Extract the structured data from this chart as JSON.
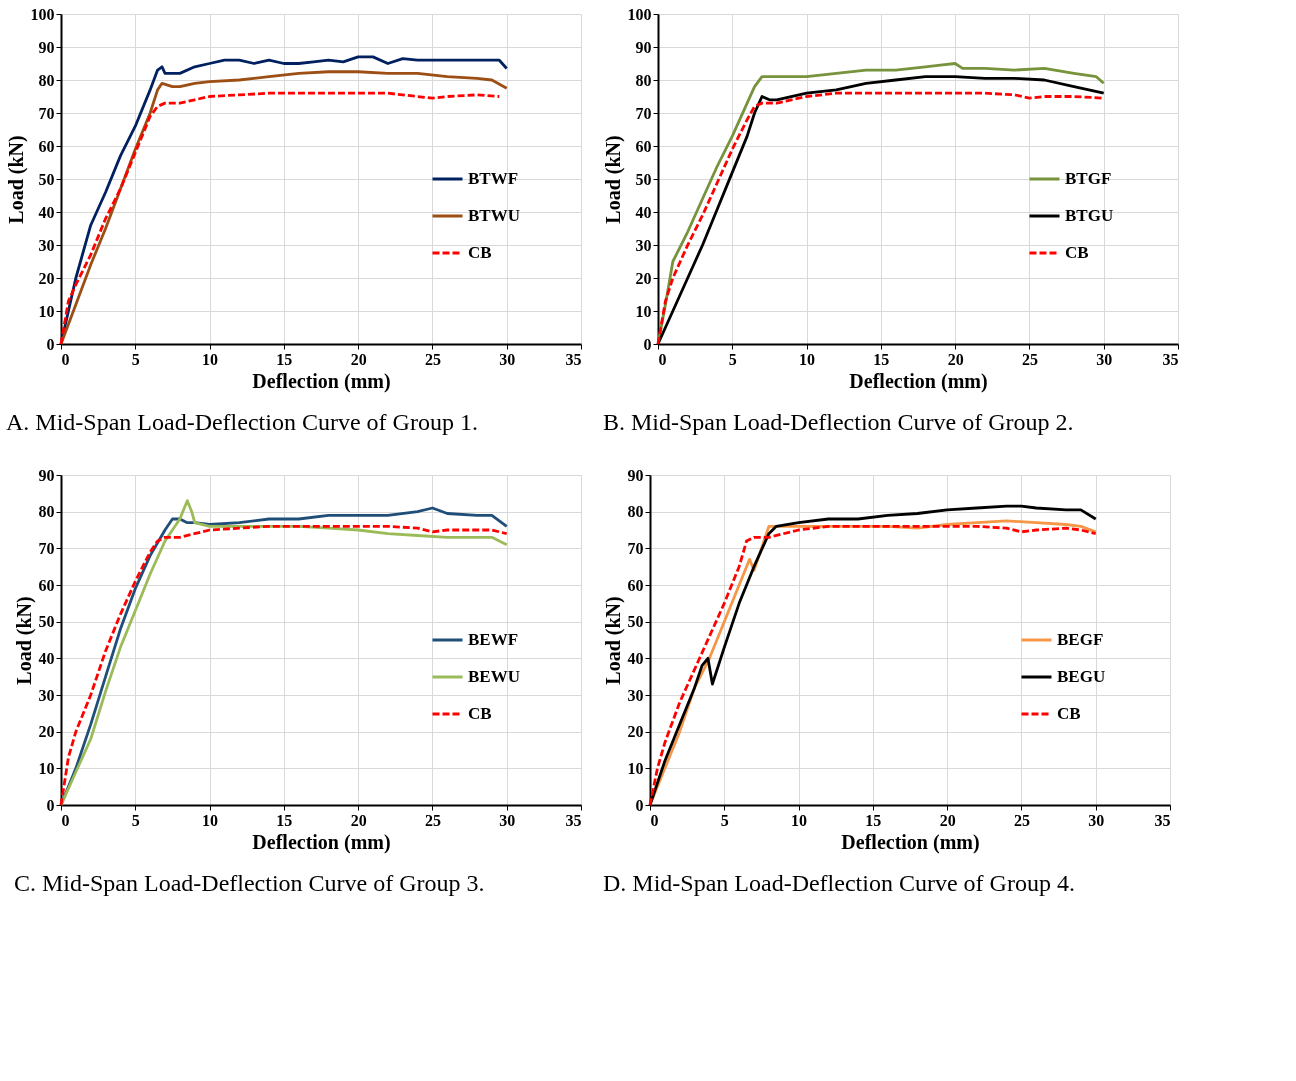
{
  "chart_data": [
    {
      "type": "line",
      "title": "A.  Mid-Span Load-Deflection Curve of Group 1.",
      "xlabel": "Deflection (mm)",
      "ylabel": "Load (kN)",
      "xlim": [
        0,
        35
      ],
      "xticks": [
        0,
        5,
        10,
        15,
        20,
        25,
        30,
        35
      ],
      "ylim": [
        0,
        100
      ],
      "yticks": [
        0,
        10,
        20,
        30,
        40,
        50,
        60,
        70,
        80,
        90,
        100
      ],
      "grid": true,
      "legend": "right",
      "series": [
        {
          "name": "BTWF",
          "color": "#002060",
          "line_style": "solid",
          "x": [
            0,
            0.5,
            1,
            2,
            3,
            4,
            5,
            6,
            6.5,
            6.8,
            7,
            8,
            9,
            10,
            11,
            12,
            13,
            14,
            15,
            16,
            17,
            18,
            19,
            20,
            21,
            22,
            23,
            24,
            25,
            26,
            27,
            28,
            29,
            29.5,
            30
          ],
          "values": [
            0,
            10,
            20,
            36,
            46,
            57,
            66,
            77,
            83,
            84,
            82,
            82,
            84,
            85,
            86,
            86,
            85,
            86,
            85,
            85,
            85.5,
            86,
            85.5,
            87,
            87,
            85,
            86.5,
            86,
            86,
            86,
            86,
            86,
            86,
            86,
            83.5
          ]
        },
        {
          "name": "BTWU",
          "color": "#9c4e14",
          "line_style": "solid",
          "x": [
            0,
            1,
            2,
            3,
            4,
            5,
            6,
            6.5,
            6.8,
            7.5,
            8,
            9,
            10,
            12,
            14,
            16,
            18,
            20,
            22,
            24,
            26,
            28,
            29,
            30
          ],
          "values": [
            0,
            12,
            24,
            35,
            47,
            59,
            70,
            77,
            79,
            78,
            78,
            79,
            79.5,
            80,
            81,
            82,
            82.5,
            82.5,
            82,
            82,
            81,
            80.5,
            80,
            77.5
          ]
        },
        {
          "name": "CB",
          "color": "#ff0000",
          "line_style": "dashed",
          "x": [
            0,
            0.5,
            1,
            2,
            3,
            4,
            5,
            6,
            6.5,
            7,
            8,
            9,
            10,
            12,
            14,
            16,
            18,
            20,
            22,
            24,
            25,
            26,
            28,
            29.5
          ],
          "values": [
            0,
            13,
            18,
            27,
            38,
            47,
            58,
            69,
            72,
            73,
            73,
            74,
            75,
            75.5,
            76,
            76,
            76,
            76,
            76,
            75,
            74.5,
            75,
            75.5,
            75
          ]
        }
      ]
    },
    {
      "type": "line",
      "title": "B.  Mid-Span Load-Deflection Curve of Group 2.",
      "xlabel": "Deflection (mm)",
      "ylabel": "Load (kN)",
      "xlim": [
        0,
        35
      ],
      "xticks": [
        0,
        5,
        10,
        15,
        20,
        25,
        30,
        35
      ],
      "ylim": [
        0,
        100
      ],
      "yticks": [
        0,
        10,
        20,
        30,
        40,
        50,
        60,
        70,
        80,
        90,
        100
      ],
      "grid": true,
      "legend": "right",
      "series": [
        {
          "name": "BTGF",
          "color": "#77933c",
          "line_style": "solid",
          "x": [
            0,
            0.5,
            1,
            2,
            3,
            4,
            5,
            6,
            6.5,
            7,
            8,
            10,
            12,
            14,
            16,
            18,
            19,
            20,
            20.5,
            22,
            24,
            26,
            28,
            29.5,
            30
          ],
          "values": [
            0,
            12,
            25,
            34,
            44,
            54,
            63,
            73,
            78,
            81,
            81,
            81,
            82,
            83,
            83,
            84,
            84.5,
            85,
            83.5,
            83.5,
            83,
            83.5,
            82,
            81,
            79
          ]
        },
        {
          "name": "BTGU",
          "color": "#000000",
          "line_style": "solid",
          "x": [
            0,
            1,
            2,
            3,
            4,
            5,
            6,
            6.5,
            7,
            7.5,
            8,
            10,
            12,
            14,
            16,
            18,
            20,
            22,
            24,
            26,
            28,
            29,
            30
          ],
          "values": [
            0,
            10,
            20,
            30,
            41,
            52,
            63,
            70,
            75,
            74,
            74,
            76,
            77,
            79,
            80,
            81,
            81,
            80.5,
            80.5,
            80,
            78,
            77,
            76
          ]
        },
        {
          "name": "CB",
          "color": "#ff0000",
          "line_style": "dashed",
          "x": [
            0,
            0.5,
            1,
            2,
            3,
            4,
            5,
            6,
            6.5,
            7,
            8,
            10,
            12,
            14,
            16,
            18,
            20,
            22,
            24,
            25,
            26,
            28,
            30
          ],
          "values": [
            0,
            13,
            20,
            30,
            39,
            49,
            59,
            68,
            72,
            73,
            73,
            75,
            76,
            76,
            76,
            76,
            76,
            76,
            75.5,
            74.5,
            75,
            75,
            74.5
          ]
        }
      ]
    },
    {
      "type": "line",
      "title": "C.  Mid-Span Load-Deflection Curve of Group 3.",
      "xlabel": "Deflection (mm)",
      "ylabel": "Load (kN)",
      "xlim": [
        0,
        35
      ],
      "xticks": [
        0,
        5,
        10,
        15,
        20,
        25,
        30,
        35
      ],
      "ylim": [
        0,
        90
      ],
      "yticks": [
        0,
        10,
        20,
        30,
        40,
        50,
        60,
        70,
        80,
        90
      ],
      "grid": true,
      "legend": "right",
      "series": [
        {
          "name": "BEWF",
          "color": "#1f4e79",
          "line_style": "solid",
          "x": [
            0,
            1,
            2,
            3,
            4,
            5,
            6,
            7,
            7.5,
            8,
            8.5,
            9,
            10,
            12,
            14,
            16,
            18,
            20,
            22,
            24,
            25,
            26,
            28,
            29,
            30
          ],
          "values": [
            0,
            10,
            22,
            35,
            48,
            59,
            68,
            75,
            78,
            78,
            77,
            77,
            76.5,
            77,
            78,
            78,
            79,
            79,
            79,
            80,
            81,
            79.5,
            79,
            79,
            76
          ]
        },
        {
          "name": "BEWU",
          "color": "#9bbb59",
          "line_style": "solid",
          "x": [
            0,
            1,
            2,
            3,
            4,
            5,
            6,
            7,
            8,
            8.3,
            8.5,
            8.8,
            9,
            10,
            12,
            14,
            16,
            18,
            20,
            22,
            24,
            26,
            28,
            29,
            30
          ],
          "values": [
            0,
            9,
            18,
            31,
            43,
            53,
            63,
            72,
            78,
            81,
            83,
            80,
            77,
            76,
            76,
            76,
            76,
            75.5,
            75,
            74,
            73.5,
            73,
            73,
            73,
            71
          ]
        },
        {
          "name": "CB",
          "color": "#ff0000",
          "line_style": "dashed",
          "x": [
            0,
            0.5,
            1,
            2,
            3,
            4,
            5,
            6,
            6.5,
            7,
            8,
            10,
            12,
            14,
            16,
            18,
            20,
            22,
            24,
            25,
            26,
            28,
            29,
            30
          ],
          "values": [
            0,
            13,
            20,
            30,
            42,
            52,
            61,
            69,
            72,
            73,
            73,
            75,
            75.5,
            76,
            76,
            76,
            76,
            76,
            75.5,
            74.5,
            75,
            75,
            75,
            74
          ]
        }
      ]
    },
    {
      "type": "line",
      "title": "D.  Mid-Span Load-Deflection Curve of Group 4.",
      "xlabel": "Deflection (mm)",
      "ylabel": "Load (kN)",
      "xlim": [
        0,
        35
      ],
      "xticks": [
        0,
        5,
        10,
        15,
        20,
        25,
        30,
        35
      ],
      "ylim": [
        0,
        90
      ],
      "yticks": [
        0,
        10,
        20,
        30,
        40,
        50,
        60,
        70,
        80,
        90
      ],
      "grid": true,
      "legend": "right",
      "series": [
        {
          "name": "BEGF",
          "color": "#f79646",
          "line_style": "solid",
          "x": [
            0,
            1,
            2,
            3,
            4,
            5,
            6,
            6.5,
            6.7,
            7,
            7.5,
            8,
            10,
            12,
            14,
            16,
            18,
            20,
            22,
            24,
            26,
            28,
            29,
            30
          ],
          "values": [
            0,
            10,
            20,
            32,
            40,
            50,
            60,
            65,
            67,
            64,
            70,
            76,
            76,
            76,
            76,
            76,
            75.5,
            76.5,
            77,
            77.5,
            77,
            76.5,
            76,
            74.5
          ]
        },
        {
          "name": "BEGU",
          "color": "#000000",
          "line_style": "solid",
          "x": [
            0,
            1,
            2,
            3,
            3.5,
            3.9,
            4.2,
            5,
            6,
            7,
            8,
            8.5,
            10,
            12,
            14,
            16,
            18,
            20,
            22,
            24,
            25,
            26,
            28,
            29,
            30
          ],
          "values": [
            0,
            12,
            22,
            32,
            38,
            40,
            33,
            43,
            55,
            65,
            74,
            76,
            77,
            78,
            78,
            79,
            79.5,
            80.5,
            81,
            81.5,
            81.5,
            81,
            80.5,
            80.5,
            78
          ]
        },
        {
          "name": "CB",
          "color": "#ff0000",
          "line_style": "dashed",
          "x": [
            0,
            0.5,
            1,
            2,
            3,
            4,
            5,
            6,
            6.5,
            7,
            8,
            10,
            12,
            14,
            16,
            18,
            20,
            22,
            24,
            25,
            26,
            28,
            29,
            30
          ],
          "values": [
            0,
            10,
            17,
            28,
            37,
            46,
            55,
            65,
            72,
            73,
            73,
            75,
            76,
            76,
            76,
            76,
            76,
            76,
            75.5,
            74.5,
            75,
            75.5,
            75,
            74
          ]
        }
      ]
    }
  ]
}
